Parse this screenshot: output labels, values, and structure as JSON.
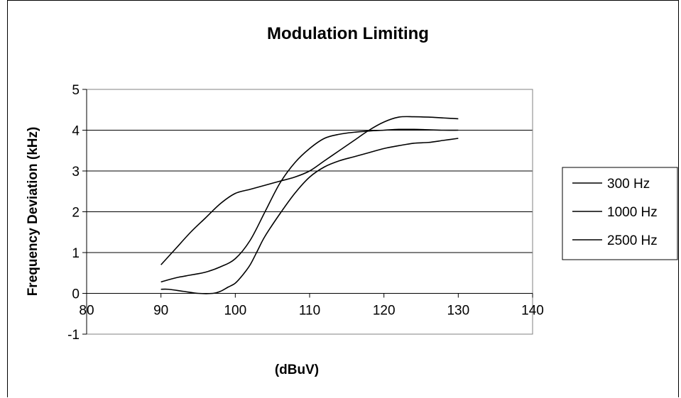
{
  "chart_data": {
    "type": "line",
    "title": "Modulation Limiting",
    "xlabel": "(dBuV)",
    "ylabel": "Frequency Deviation (kHz)",
    "xlim": [
      80,
      140
    ],
    "ylim": [
      -1,
      5
    ],
    "xticks": [
      80,
      90,
      100,
      110,
      120,
      130,
      140
    ],
    "yticks": [
      -1,
      0,
      1,
      2,
      3,
      4,
      5
    ],
    "grid": "horizontal",
    "legend_position": "right",
    "colors": {
      "lines": "#000000",
      "grid": "#000000",
      "background": "#ffffff"
    },
    "series": [
      {
        "name": "300 Hz",
        "x": [
          90,
          92,
          94,
          96,
          98,
          100,
          102,
          104,
          106,
          108,
          110,
          112,
          114,
          116,
          118,
          120,
          122,
          124,
          126,
          128,
          130
        ],
        "values": [
          0.7,
          1.1,
          1.5,
          1.85,
          2.2,
          2.45,
          2.55,
          2.65,
          2.75,
          2.85,
          3.0,
          3.25,
          3.5,
          3.75,
          4.0,
          4.2,
          4.32,
          4.33,
          4.32,
          4.3,
          4.28
        ]
      },
      {
        "name": "1000 Hz",
        "x": [
          90,
          92,
          94,
          96,
          98,
          100,
          102,
          104,
          106,
          108,
          110,
          112,
          114,
          116,
          118,
          120,
          122,
          124,
          126,
          128,
          130
        ],
        "values": [
          0.28,
          0.38,
          0.45,
          0.52,
          0.65,
          0.85,
          1.3,
          2.0,
          2.7,
          3.2,
          3.55,
          3.8,
          3.9,
          3.95,
          3.98,
          4.0,
          4.02,
          4.02,
          4.01,
          4.0,
          4.0
        ]
      },
      {
        "name": "2500 Hz",
        "x": [
          90,
          91,
          93,
          95,
          97,
          98,
          99,
          100,
          101,
          102,
          103,
          104,
          106,
          108,
          110,
          112,
          114,
          116,
          118,
          120,
          122,
          124,
          126,
          128,
          130
        ],
        "values": [
          0.1,
          0.1,
          0.05,
          0.0,
          0.0,
          0.05,
          0.15,
          0.25,
          0.45,
          0.7,
          1.05,
          1.4,
          1.95,
          2.45,
          2.85,
          3.1,
          3.25,
          3.35,
          3.45,
          3.55,
          3.62,
          3.68,
          3.7,
          3.75,
          3.8
        ]
      }
    ]
  }
}
